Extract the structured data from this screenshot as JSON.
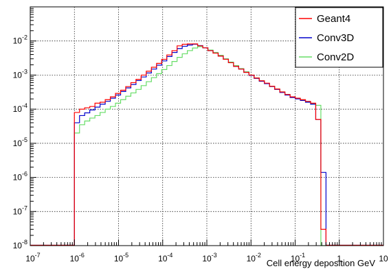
{
  "chart_data": {
    "type": "line",
    "xlabel": "Cell energy deposition GeV",
    "ylabel": "",
    "log_x": true,
    "log_y": true,
    "xlim": [
      1e-07,
      10
    ],
    "ylim": [
      1e-08,
      0.1
    ],
    "grid": true,
    "legend_position": "top-right",
    "x_tick_labels": [
      {
        "exp": "-7",
        "value": 1e-07
      },
      {
        "exp": "-6",
        "value": 1e-06
      },
      {
        "exp": "-5",
        "value": 1e-05
      },
      {
        "exp": "-4",
        "value": 0.0001
      },
      {
        "exp": "-3",
        "value": 0.001
      },
      {
        "exp": "-2",
        "value": 0.01
      },
      {
        "exp": "-1",
        "value": 0.1
      },
      {
        "exp": "",
        "value": 1
      },
      {
        "exp": "",
        "value": 10
      }
    ],
    "x_tick_bases": [
      "10",
      "10",
      "10",
      "10",
      "10",
      "10",
      "10",
      "1",
      "10"
    ],
    "y_tick_labels": [
      {
        "exp": "-8",
        "value": 1e-08
      },
      {
        "exp": "-7",
        "value": 1e-07
      },
      {
        "exp": "-6",
        "value": 1e-06
      },
      {
        "exp": "-5",
        "value": 1e-05
      },
      {
        "exp": "-4",
        "value": 0.0001
      },
      {
        "exp": "-3",
        "value": 0.001
      },
      {
        "exp": "-2",
        "value": 0.01
      }
    ],
    "y_tick_base": "10",
    "bins_per_decade": 10,
    "bin_start": 1e-06,
    "bin_end": 0.5,
    "series": [
      {
        "name": "Geant4",
        "color": "#ff0000",
        "values": [
          8e-05,
          0.0001,
          0.00011,
          0.00012,
          0.00015,
          0.00016,
          0.00019,
          0.00023,
          0.00029,
          0.00036,
          0.00046,
          0.0006,
          0.00075,
          0.001,
          0.0013,
          0.0017,
          0.0022,
          0.0029,
          0.0039,
          0.0052,
          0.0072,
          0.008,
          0.0082,
          0.0082,
          0.0072,
          0.0063,
          0.0052,
          0.0044,
          0.0036,
          0.0029,
          0.0023,
          0.0018,
          0.0015,
          0.0012,
          0.001,
          0.00082,
          0.00068,
          0.00058,
          0.00047,
          0.00039,
          0.00032,
          0.00027,
          0.00023,
          0.00021,
          0.00019,
          0.00017,
          0.00015,
          5e-05,
          3e-08
        ]
      },
      {
        "name": "Conv3D",
        "color": "#0000cc",
        "values": [
          4e-05,
          6.5e-05,
          7.8e-05,
          9.5e-05,
          0.000115,
          0.00014,
          0.00017,
          0.00021,
          0.00026,
          0.00033,
          0.00042,
          0.00053,
          0.00069,
          0.00088,
          0.00115,
          0.0015,
          0.00195,
          0.0026,
          0.0035,
          0.0046,
          0.006,
          0.007,
          0.0076,
          0.008,
          0.0073,
          0.0063,
          0.0052,
          0.0044,
          0.0036,
          0.0029,
          0.0023,
          0.0018,
          0.0015,
          0.0012,
          0.00098,
          0.0008,
          0.00066,
          0.00056,
          0.00046,
          0.00038,
          0.00031,
          0.00026,
          0.00022,
          0.0002,
          0.00018,
          0.00016,
          0.00014,
          5e-05,
          1.4e-06
        ]
      },
      {
        "name": "Conv2D",
        "color": "#66dd66",
        "values": [
          2e-05,
          3.5e-05,
          4.5e-05,
          5.5e-05,
          6.5e-05,
          8e-05,
          0.0001,
          0.00012,
          0.00015,
          0.00019,
          0.00024,
          0.0003,
          0.00038,
          0.00049,
          0.00064,
          0.00084,
          0.0011,
          0.00145,
          0.0019,
          0.0025,
          0.0033,
          0.0042,
          0.0052,
          0.0062,
          0.0068,
          0.0063,
          0.0054,
          0.0046,
          0.0038,
          0.003,
          0.0024,
          0.0019,
          0.00155,
          0.00125,
          0.001,
          0.00083,
          0.00068,
          0.00057,
          0.00047,
          0.00039,
          0.00032,
          0.00027,
          0.00023,
          0.000205,
          0.000185,
          0.000165,
          0.000145,
          0.00013,
          5e-09
        ]
      }
    ]
  }
}
